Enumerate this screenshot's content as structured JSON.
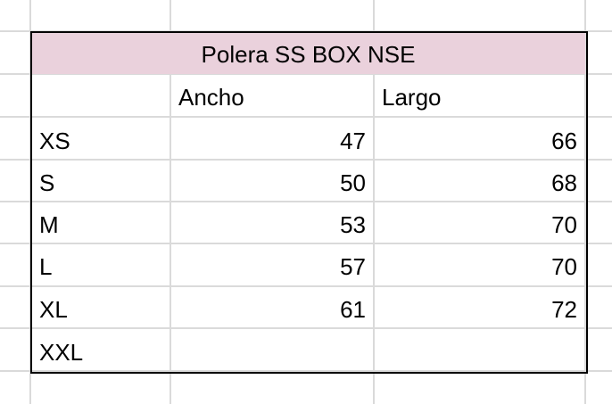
{
  "sheet": {
    "title": "Polera SS BOX NSE",
    "title_fill": "#ead1dc",
    "headers": [
      "",
      "Ancho",
      "Largo"
    ],
    "rows": [
      {
        "size": "XS",
        "ancho": "47",
        "largo": "66"
      },
      {
        "size": "S",
        "ancho": "50",
        "largo": "68"
      },
      {
        "size": "M",
        "ancho": "53",
        "largo": "70"
      },
      {
        "size": "L",
        "ancho": "57",
        "largo": "70"
      },
      {
        "size": "XL",
        "ancho": "61",
        "largo": "72"
      },
      {
        "size": "XXL",
        "ancho": "",
        "largo": ""
      }
    ]
  }
}
